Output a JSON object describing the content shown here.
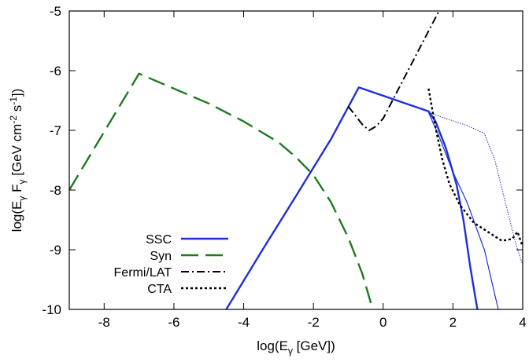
{
  "chart_data": {
    "type": "line",
    "xlabel_parts": [
      "log(E",
      "γ",
      " [GeV])"
    ],
    "ylabel_parts": [
      "log(E",
      "γ",
      " F",
      "γ",
      " [GeV cm",
      "-2",
      " s",
      "-1",
      "])"
    ],
    "xlim": [
      -9,
      4
    ],
    "ylim": [
      -10,
      -5
    ],
    "xticks": [
      -8,
      -6,
      -4,
      -2,
      0,
      2,
      4
    ],
    "yticks": [
      -10,
      -9,
      -8,
      -7,
      -6,
      -5
    ],
    "x_tick_labels": [
      "-8",
      "-6",
      "-4",
      "-2",
      "0",
      "2",
      "4"
    ],
    "y_tick_labels": [
      "-10",
      "-9",
      "-8",
      "-7",
      "-6",
      "-5"
    ],
    "grid": false,
    "legend_position": "bottom-left",
    "legend": [
      "SSC",
      "Syn",
      "Fermi/LAT",
      "CTA"
    ],
    "series": [
      {
        "name": "SSC",
        "color": "#1f2fd6",
        "style": "solid",
        "width": 2.4,
        "points": [
          [
            -4.5,
            -10.0
          ],
          [
            -3.5,
            -9.04
          ],
          [
            -2.5,
            -8.1
          ],
          [
            -1.5,
            -7.15
          ],
          [
            -0.7,
            -6.28
          ],
          [
            1.3,
            -6.68
          ],
          [
            1.5,
            -6.85
          ],
          [
            1.8,
            -7.3
          ],
          [
            2.1,
            -7.9
          ],
          [
            2.3,
            -8.5
          ],
          [
            2.5,
            -9.3
          ],
          [
            2.7,
            -10.0
          ]
        ]
      },
      {
        "name": "SSC (thin)",
        "color": "#1f2fd6",
        "style": "solid",
        "width": 1.2,
        "points": [
          [
            1.3,
            -6.7
          ],
          [
            1.6,
            -7.1
          ],
          [
            2.0,
            -7.7
          ],
          [
            2.4,
            -8.2
          ],
          [
            2.9,
            -9.0
          ],
          [
            3.1,
            -9.5
          ],
          [
            3.3,
            -10.0
          ]
        ]
      },
      {
        "name": "SSC (dotted)",
        "color": "#1f2fd6",
        "style": "dotted",
        "width": 1.0,
        "points": [
          [
            1.3,
            -6.7
          ],
          [
            1.8,
            -6.8
          ],
          [
            2.4,
            -6.92
          ],
          [
            2.9,
            -7.05
          ],
          [
            3.2,
            -7.5
          ],
          [
            3.5,
            -8.2
          ],
          [
            3.8,
            -8.9
          ],
          [
            4.0,
            -9.25
          ]
        ]
      },
      {
        "name": "Syn",
        "color": "#1f7a1f",
        "style": "dashed",
        "width": 2.4,
        "points": [
          [
            -9.0,
            -8.0
          ],
          [
            -7.0,
            -6.05
          ],
          [
            -6.0,
            -6.3
          ],
          [
            -5.0,
            -6.55
          ],
          [
            -4.0,
            -6.85
          ],
          [
            -3.0,
            -7.2
          ],
          [
            -2.5,
            -7.45
          ],
          [
            -2.0,
            -7.75
          ],
          [
            -1.5,
            -8.2
          ],
          [
            -1.0,
            -8.8
          ],
          [
            -0.6,
            -9.4
          ],
          [
            -0.3,
            -10.0
          ]
        ]
      },
      {
        "name": "Fermi/LAT",
        "color": "#000000",
        "style": "dashdot",
        "width": 2.0,
        "points": [
          [
            -1.0,
            -6.6
          ],
          [
            -0.6,
            -6.9
          ],
          [
            -0.4,
            -7.0
          ],
          [
            -0.2,
            -6.93
          ],
          [
            0.0,
            -6.8
          ],
          [
            0.4,
            -6.35
          ],
          [
            0.8,
            -5.9
          ],
          [
            1.2,
            -5.45
          ],
          [
            1.6,
            -5.0
          ]
        ]
      },
      {
        "name": "CTA",
        "color": "#000000",
        "style": "dotted",
        "width": 2.4,
        "points": [
          [
            1.3,
            -6.3
          ],
          [
            1.5,
            -6.95
          ],
          [
            1.7,
            -7.5
          ],
          [
            1.9,
            -7.9
          ],
          [
            2.2,
            -8.25
          ],
          [
            2.6,
            -8.55
          ],
          [
            3.0,
            -8.7
          ],
          [
            3.4,
            -8.85
          ],
          [
            3.7,
            -8.82
          ],
          [
            3.85,
            -8.7
          ],
          [
            4.0,
            -8.95
          ]
        ]
      }
    ]
  }
}
